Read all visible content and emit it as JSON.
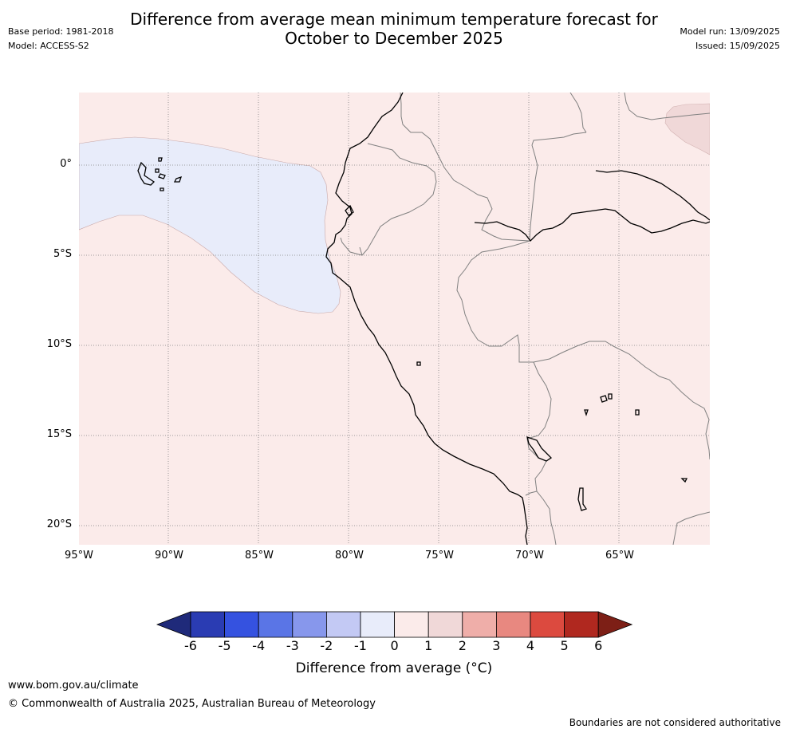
{
  "title": {
    "line1": "Difference from average mean minimum temperature forecast for",
    "line2": "October to December 2025"
  },
  "meta": {
    "base_period": "Base period: 1981-2018",
    "model": "Model: ACCESS-S2",
    "model_run": "Model run: 13/09/2025",
    "issued": "Issued: 15/09/2025"
  },
  "map": {
    "lat_labels": [
      "0°",
      "5°S",
      "10°S",
      "15°S",
      "20°S"
    ],
    "lon_labels": [
      "95°W",
      "90°W",
      "85°W",
      "80°W",
      "75°W",
      "70°W",
      "65°W"
    ],
    "colors": {
      "anomaly_0_to_1": "#fbebea",
      "anomaly_neg1_to_0": "#e8ecfa",
      "anomaly_1_to_2": "#f0d8d8",
      "coastline": "#000000",
      "borders": "#808080",
      "gridlines": "#808080"
    }
  },
  "colorbar": {
    "labels": [
      "-6",
      "-5",
      "-4",
      "-3",
      "-2",
      "-1",
      "0",
      "1",
      "2",
      "3",
      "4",
      "5",
      "6"
    ],
    "colors": [
      "#1f2a7a",
      "#2a3cb3",
      "#3552e0",
      "#5a75e6",
      "#8797ec",
      "#c3c9f4",
      "#e8ecfa",
      "#fbebea",
      "#f0d8d8",
      "#efaea9",
      "#e88880",
      "#dc4a3f",
      "#b0281f",
      "#7d1f16"
    ],
    "title": "Difference from average ($^\\circ$C)",
    "title_rendered": "Difference from average (°C)"
  },
  "footer": {
    "website": "www.bom.gov.au/climate",
    "copyright": "© Commonwealth of Australia 2025, Australian Bureau of Meteorology",
    "disclaimer": "Boundaries are not considered authoritative"
  }
}
